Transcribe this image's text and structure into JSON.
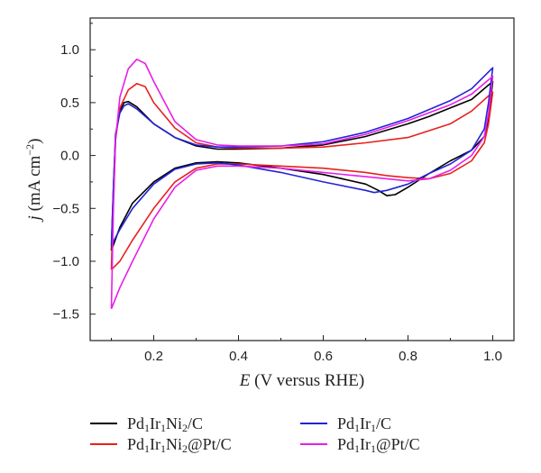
{
  "chart_data": {
    "type": "line",
    "xlabel": {
      "italic": "E",
      "rest": " (V versus RHE)"
    },
    "ylabel": {
      "italic": "j",
      "rest": " (mA cm",
      "sup": "−2",
      "close": ")"
    },
    "xlim": [
      0.05,
      1.05
    ],
    "ylim": [
      -1.75,
      1.3
    ],
    "x_ticks": [
      0.2,
      0.4,
      0.6,
      0.8,
      1.0
    ],
    "x_tick_labels": [
      "0.2",
      "0.4",
      "0.6",
      "0.8",
      "1.0"
    ],
    "y_ticks": [
      -1.5,
      -1.0,
      -0.5,
      0.0,
      0.5,
      1.0
    ],
    "y_tick_labels": [
      "−1.5",
      "−1.0",
      "−0.5",
      "0.0",
      "0.5",
      "1.0"
    ],
    "grid": false,
    "legend_position": "bottom",
    "series": [
      {
        "name": "Pd1Ir1Ni2/C",
        "label_parts": [
          [
            "Pd",
            "1"
          ],
          [
            "Ir",
            "1"
          ],
          [
            "Ni",
            "2"
          ],
          [
            "/C",
            ""
          ]
        ],
        "color": "#000000",
        "anodic": [
          [
            0.1,
            -0.9
          ],
          [
            0.105,
            -0.3
          ],
          [
            0.11,
            0.2
          ],
          [
            0.12,
            0.42
          ],
          [
            0.13,
            0.5
          ],
          [
            0.14,
            0.51
          ],
          [
            0.16,
            0.46
          ],
          [
            0.2,
            0.3
          ],
          [
            0.25,
            0.17
          ],
          [
            0.3,
            0.09
          ],
          [
            0.35,
            0.06
          ],
          [
            0.4,
            0.06
          ],
          [
            0.5,
            0.07
          ],
          [
            0.6,
            0.1
          ],
          [
            0.7,
            0.18
          ],
          [
            0.8,
            0.3
          ],
          [
            0.85,
            0.37
          ],
          [
            0.9,
            0.45
          ],
          [
            0.95,
            0.53
          ],
          [
            1.0,
            0.7
          ]
        ],
        "cathodic": [
          [
            1.0,
            0.7
          ],
          [
            0.99,
            0.35
          ],
          [
            0.98,
            0.18
          ],
          [
            0.95,
            0.05
          ],
          [
            0.9,
            -0.05
          ],
          [
            0.85,
            -0.17
          ],
          [
            0.8,
            -0.3
          ],
          [
            0.77,
            -0.37
          ],
          [
            0.75,
            -0.38
          ],
          [
            0.73,
            -0.33
          ],
          [
            0.7,
            -0.27
          ],
          [
            0.6,
            -0.18
          ],
          [
            0.5,
            -0.12
          ],
          [
            0.4,
            -0.07
          ],
          [
            0.35,
            -0.06
          ],
          [
            0.3,
            -0.07
          ],
          [
            0.25,
            -0.12
          ],
          [
            0.2,
            -0.25
          ],
          [
            0.15,
            -0.45
          ],
          [
            0.12,
            -0.68
          ],
          [
            0.1,
            -0.9
          ]
        ]
      },
      {
        "name": "Pd1Ir1Ni2@Pt/C",
        "label_parts": [
          [
            "Pd",
            "1"
          ],
          [
            "Ir",
            "1"
          ],
          [
            "Ni",
            "2"
          ],
          [
            "@Pt/C",
            ""
          ]
        ],
        "color": "#e8201e",
        "anodic": [
          [
            0.1,
            -1.08
          ],
          [
            0.105,
            -0.4
          ],
          [
            0.11,
            0.15
          ],
          [
            0.12,
            0.45
          ],
          [
            0.14,
            0.62
          ],
          [
            0.16,
            0.68
          ],
          [
            0.18,
            0.65
          ],
          [
            0.2,
            0.5
          ],
          [
            0.25,
            0.26
          ],
          [
            0.3,
            0.12
          ],
          [
            0.35,
            0.08
          ],
          [
            0.4,
            0.07
          ],
          [
            0.5,
            0.07
          ],
          [
            0.6,
            0.08
          ],
          [
            0.7,
            0.12
          ],
          [
            0.8,
            0.17
          ],
          [
            0.9,
            0.3
          ],
          [
            0.95,
            0.42
          ],
          [
            1.0,
            0.6
          ]
        ],
        "cathodic": [
          [
            1.0,
            0.6
          ],
          [
            0.99,
            0.3
          ],
          [
            0.98,
            0.12
          ],
          [
            0.95,
            -0.05
          ],
          [
            0.9,
            -0.17
          ],
          [
            0.85,
            -0.22
          ],
          [
            0.8,
            -0.21
          ],
          [
            0.75,
            -0.19
          ],
          [
            0.7,
            -0.16
          ],
          [
            0.6,
            -0.12
          ],
          [
            0.5,
            -0.1
          ],
          [
            0.4,
            -0.08
          ],
          [
            0.35,
            -0.08
          ],
          [
            0.3,
            -0.12
          ],
          [
            0.25,
            -0.25
          ],
          [
            0.2,
            -0.5
          ],
          [
            0.15,
            -0.8
          ],
          [
            0.12,
            -1.0
          ],
          [
            0.1,
            -1.08
          ]
        ]
      },
      {
        "name": "Pd1Ir1/C",
        "label_parts": [
          [
            "Pd",
            "1"
          ],
          [
            "Ir",
            "1"
          ],
          [
            "/C",
            ""
          ]
        ],
        "color": "#2323d8",
        "anodic": [
          [
            0.1,
            -0.85
          ],
          [
            0.105,
            -0.3
          ],
          [
            0.11,
            0.2
          ],
          [
            0.12,
            0.4
          ],
          [
            0.13,
            0.47
          ],
          [
            0.14,
            0.49
          ],
          [
            0.16,
            0.44
          ],
          [
            0.2,
            0.3
          ],
          [
            0.25,
            0.17
          ],
          [
            0.3,
            0.1
          ],
          [
            0.35,
            0.08
          ],
          [
            0.4,
            0.08
          ],
          [
            0.5,
            0.09
          ],
          [
            0.6,
            0.13
          ],
          [
            0.7,
            0.22
          ],
          [
            0.8,
            0.35
          ],
          [
            0.9,
            0.52
          ],
          [
            0.95,
            0.63
          ],
          [
            1.0,
            0.83
          ]
        ],
        "cathodic": [
          [
            1.0,
            0.83
          ],
          [
            0.99,
            0.5
          ],
          [
            0.98,
            0.25
          ],
          [
            0.95,
            0.05
          ],
          [
            0.9,
            -0.08
          ],
          [
            0.85,
            -0.17
          ],
          [
            0.8,
            -0.27
          ],
          [
            0.75,
            -0.33
          ],
          [
            0.72,
            -0.35
          ],
          [
            0.7,
            -0.33
          ],
          [
            0.6,
            -0.25
          ],
          [
            0.5,
            -0.16
          ],
          [
            0.4,
            -0.09
          ],
          [
            0.35,
            -0.07
          ],
          [
            0.3,
            -0.08
          ],
          [
            0.25,
            -0.13
          ],
          [
            0.2,
            -0.27
          ],
          [
            0.15,
            -0.5
          ],
          [
            0.12,
            -0.7
          ],
          [
            0.1,
            -0.85
          ]
        ]
      },
      {
        "name": "Pd1Ir1@Pt/C",
        "label_parts": [
          [
            "Pd",
            "1"
          ],
          [
            "Ir",
            "1"
          ],
          [
            "@Pt/C",
            ""
          ]
        ],
        "color": "#e81ee8",
        "anodic": [
          [
            0.1,
            -1.45
          ],
          [
            0.105,
            -0.5
          ],
          [
            0.11,
            0.15
          ],
          [
            0.12,
            0.55
          ],
          [
            0.14,
            0.82
          ],
          [
            0.16,
            0.91
          ],
          [
            0.18,
            0.87
          ],
          [
            0.2,
            0.7
          ],
          [
            0.25,
            0.32
          ],
          [
            0.3,
            0.15
          ],
          [
            0.35,
            0.1
          ],
          [
            0.4,
            0.09
          ],
          [
            0.5,
            0.09
          ],
          [
            0.6,
            0.11
          ],
          [
            0.7,
            0.2
          ],
          [
            0.8,
            0.33
          ],
          [
            0.9,
            0.48
          ],
          [
            0.95,
            0.58
          ],
          [
            1.0,
            0.75
          ]
        ],
        "cathodic": [
          [
            1.0,
            0.75
          ],
          [
            0.99,
            0.4
          ],
          [
            0.98,
            0.18
          ],
          [
            0.95,
            0.0
          ],
          [
            0.9,
            -0.14
          ],
          [
            0.85,
            -0.22
          ],
          [
            0.8,
            -0.24
          ],
          [
            0.75,
            -0.22
          ],
          [
            0.7,
            -0.2
          ],
          [
            0.6,
            -0.16
          ],
          [
            0.5,
            -0.12
          ],
          [
            0.4,
            -0.1
          ],
          [
            0.35,
            -0.1
          ],
          [
            0.3,
            -0.14
          ],
          [
            0.25,
            -0.3
          ],
          [
            0.2,
            -0.6
          ],
          [
            0.15,
            -1.0
          ],
          [
            0.12,
            -1.25
          ],
          [
            0.1,
            -1.45
          ]
        ]
      }
    ]
  }
}
